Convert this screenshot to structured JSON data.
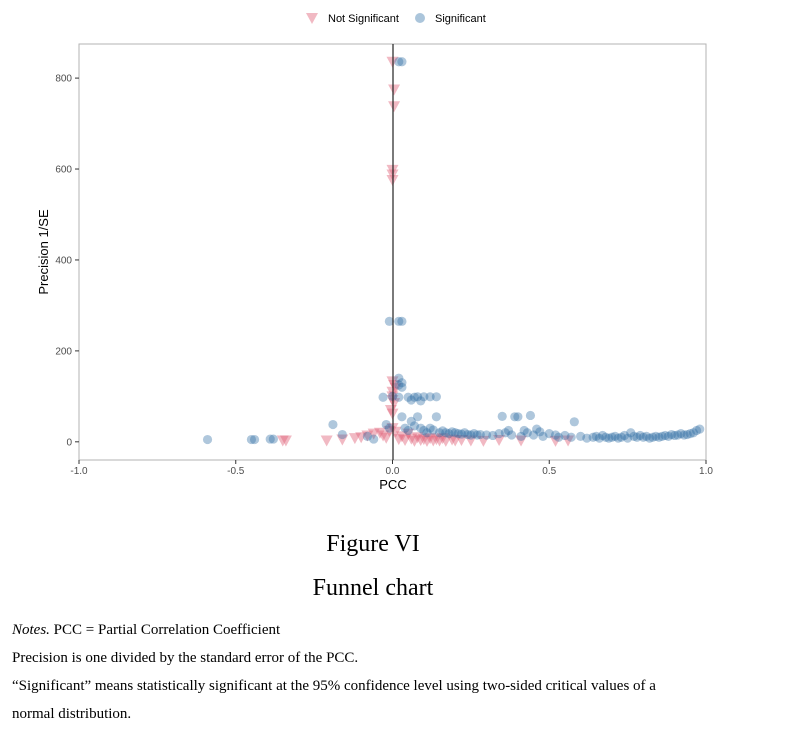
{
  "chart_data": {
    "type": "scatter",
    "xlabel": "PCC",
    "ylabel": "Precision 1/SE",
    "xlim": [
      -1.0,
      1.0
    ],
    "ylim": [
      -40,
      875
    ],
    "xticks": [
      -1.0,
      -0.5,
      0.0,
      0.5,
      1.0
    ],
    "xtick_labels": [
      "-1.0",
      "-0.5",
      "0.0",
      "0.5",
      "1.0"
    ],
    "yticks": [
      0,
      200,
      400,
      600,
      800
    ],
    "ytick_labels": [
      "0",
      "200",
      "400",
      "600",
      "800"
    ],
    "vline_x": 0,
    "legend_position": "top",
    "grid": false,
    "series": [
      {
        "name": "Not Significant",
        "marker": "triangle-down",
        "color": "#E0637A",
        "points": [
          [
            0.0,
            836
          ],
          [
            0.005,
            775
          ],
          [
            0.005,
            738
          ],
          [
            0.0,
            598
          ],
          [
            0.0,
            588
          ],
          [
            0.0,
            576
          ],
          [
            0.0,
            133
          ],
          [
            0.005,
            125
          ],
          [
            0.01,
            118
          ],
          [
            0.0,
            110
          ],
          [
            0.0,
            100
          ],
          [
            0.0,
            92
          ],
          [
            0.005,
            85
          ],
          [
            -0.005,
            70
          ],
          [
            0.0,
            62
          ],
          [
            -0.34,
            3
          ],
          [
            -0.35,
            3
          ],
          [
            -0.21,
            3
          ],
          [
            -0.16,
            5
          ],
          [
            -0.12,
            8
          ],
          [
            -0.1,
            10
          ],
          [
            -0.08,
            14
          ],
          [
            -0.06,
            18
          ],
          [
            -0.04,
            20
          ],
          [
            -0.03,
            14
          ],
          [
            -0.02,
            9
          ],
          [
            -0.01,
            24
          ],
          [
            0.0,
            30
          ],
          [
            0.01,
            22
          ],
          [
            0.02,
            6
          ],
          [
            0.03,
            12
          ],
          [
            0.04,
            4
          ],
          [
            0.05,
            18
          ],
          [
            0.06,
            7
          ],
          [
            0.07,
            2
          ],
          [
            0.08,
            10
          ],
          [
            0.09,
            4
          ],
          [
            0.1,
            6
          ],
          [
            0.11,
            2
          ],
          [
            0.12,
            8
          ],
          [
            0.13,
            3
          ],
          [
            0.14,
            6
          ],
          [
            0.15,
            3
          ],
          [
            0.16,
            8
          ],
          [
            0.17,
            2
          ],
          [
            0.19,
            5
          ],
          [
            0.2,
            3
          ],
          [
            0.22,
            4
          ],
          [
            0.25,
            3
          ],
          [
            0.29,
            2
          ],
          [
            0.34,
            4
          ],
          [
            0.41,
            3
          ],
          [
            0.52,
            2
          ],
          [
            0.56,
            3
          ]
        ]
      },
      {
        "name": "Significant",
        "marker": "circle",
        "color": "#2E6DA4",
        "points": [
          [
            0.02,
            836
          ],
          [
            0.03,
            836
          ],
          [
            0.02,
            265
          ],
          [
            0.03,
            265
          ],
          [
            -0.01,
            265
          ],
          [
            0.02,
            140
          ],
          [
            0.03,
            130
          ],
          [
            0.02,
            125
          ],
          [
            0.03,
            120
          ],
          [
            0.0,
            100
          ],
          [
            0.02,
            98
          ],
          [
            0.05,
            98
          ],
          [
            0.07,
            98
          ],
          [
            0.08,
            99
          ],
          [
            0.1,
            99
          ],
          [
            0.12,
            99
          ],
          [
            0.14,
            99
          ],
          [
            -0.03,
            98
          ],
          [
            0.06,
            92
          ],
          [
            0.09,
            90
          ],
          [
            -0.59,
            5
          ],
          [
            -0.45,
            5
          ],
          [
            -0.44,
            5
          ],
          [
            -0.39,
            6
          ],
          [
            -0.38,
            6
          ],
          [
            -0.19,
            38
          ],
          [
            -0.16,
            16
          ],
          [
            -0.08,
            12
          ],
          [
            -0.06,
            6
          ],
          [
            -0.02,
            38
          ],
          [
            -0.01,
            30
          ],
          [
            0.03,
            55
          ],
          [
            0.04,
            30
          ],
          [
            0.05,
            25
          ],
          [
            0.06,
            45
          ],
          [
            0.07,
            35
          ],
          [
            0.08,
            55
          ],
          [
            0.09,
            30
          ],
          [
            0.1,
            25
          ],
          [
            0.11,
            20
          ],
          [
            0.12,
            30
          ],
          [
            0.13,
            26
          ],
          [
            0.14,
            55
          ],
          [
            0.15,
            20
          ],
          [
            0.16,
            24
          ],
          [
            0.17,
            20
          ],
          [
            0.18,
            18
          ],
          [
            0.19,
            22
          ],
          [
            0.2,
            20
          ],
          [
            0.21,
            18
          ],
          [
            0.22,
            17
          ],
          [
            0.23,
            20
          ],
          [
            0.24,
            16
          ],
          [
            0.25,
            15
          ],
          [
            0.26,
            18
          ],
          [
            0.27,
            15
          ],
          [
            0.28,
            16
          ],
          [
            0.3,
            15
          ],
          [
            0.32,
            14
          ],
          [
            0.34,
            18
          ],
          [
            0.35,
            56
          ],
          [
            0.36,
            20
          ],
          [
            0.37,
            25
          ],
          [
            0.38,
            15
          ],
          [
            0.39,
            55
          ],
          [
            0.4,
            55
          ],
          [
            0.41,
            12
          ],
          [
            0.42,
            25
          ],
          [
            0.43,
            20
          ],
          [
            0.44,
            58
          ],
          [
            0.45,
            15
          ],
          [
            0.46,
            28
          ],
          [
            0.47,
            22
          ],
          [
            0.48,
            12
          ],
          [
            0.5,
            18
          ],
          [
            0.52,
            15
          ],
          [
            0.53,
            10
          ],
          [
            0.55,
            14
          ],
          [
            0.57,
            10
          ],
          [
            0.58,
            44
          ],
          [
            0.6,
            12
          ],
          [
            0.62,
            8
          ],
          [
            0.64,
            10
          ],
          [
            0.65,
            12
          ],
          [
            0.66,
            8
          ],
          [
            0.67,
            14
          ],
          [
            0.68,
            10
          ],
          [
            0.69,
            8
          ],
          [
            0.7,
            10
          ],
          [
            0.71,
            12
          ],
          [
            0.72,
            8
          ],
          [
            0.73,
            10
          ],
          [
            0.74,
            14
          ],
          [
            0.75,
            8
          ],
          [
            0.76,
            20
          ],
          [
            0.77,
            12
          ],
          [
            0.78,
            10
          ],
          [
            0.79,
            14
          ],
          [
            0.8,
            10
          ],
          [
            0.81,
            12
          ],
          [
            0.82,
            8
          ],
          [
            0.83,
            10
          ],
          [
            0.84,
            12
          ],
          [
            0.85,
            10
          ],
          [
            0.86,
            12
          ],
          [
            0.87,
            14
          ],
          [
            0.88,
            12
          ],
          [
            0.89,
            16
          ],
          [
            0.9,
            14
          ],
          [
            0.91,
            15
          ],
          [
            0.92,
            18
          ],
          [
            0.93,
            15
          ],
          [
            0.94,
            16
          ],
          [
            0.95,
            18
          ],
          [
            0.96,
            20
          ],
          [
            0.97,
            25
          ],
          [
            0.98,
            28
          ]
        ]
      }
    ]
  },
  "figure": {
    "number": "Figure VI",
    "title": "Funnel chart"
  },
  "notes": {
    "prefix": "Notes.",
    "line1": " PCC = Partial Correlation Coefficient",
    "line2": "Precision is one divided by the standard error of the PCC.",
    "line3": "“Significant” means statistically significant at the 95% confidence level using two-sided critical values of a",
    "line4": "normal distribution."
  }
}
